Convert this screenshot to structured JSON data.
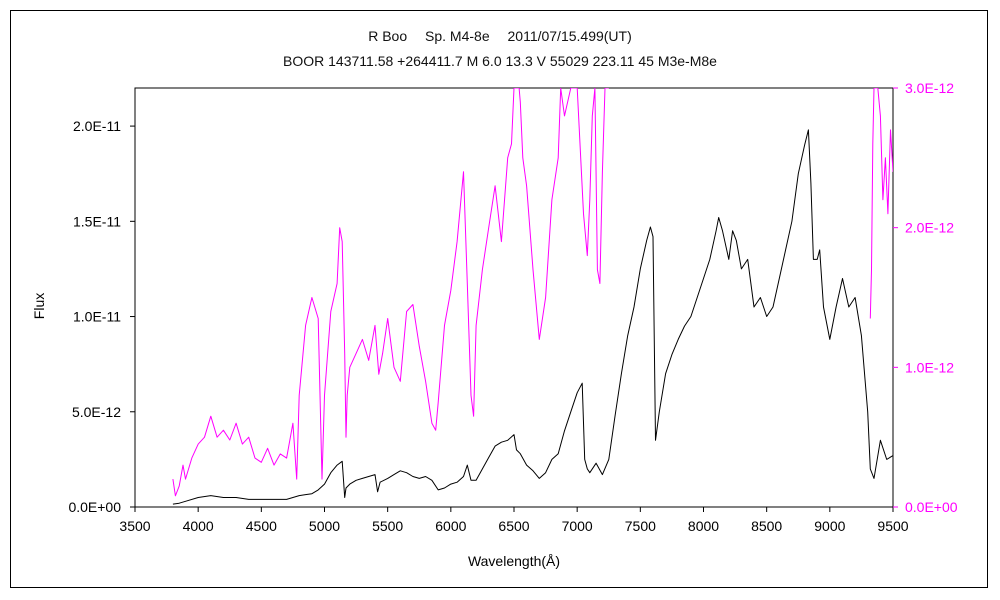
{
  "chart_data": {
    "type": "line",
    "title": "R Boo　 Sp. M4-8e　 2011/07/15.499(UT)",
    "subtitle": "BOOR 143711.58 +264411.7 M 6.0 13.3 V 55029 223.11 45 M3e-M8e",
    "xlabel": "Wavelength(Å)",
    "ylabel": "Flux",
    "xlim": [
      3500,
      9500
    ],
    "ylim": [
      0,
      2.2e-11
    ],
    "y2lim": [
      0,
      3e-12
    ],
    "x_ticks": [
      "3500",
      "4000",
      "4500",
      "5000",
      "5500",
      "6000",
      "6500",
      "7000",
      "7500",
      "8000",
      "8500",
      "9000",
      "9500"
    ],
    "y_ticks": [
      "0.0E+00",
      "5.0E-12",
      "1.0E-11",
      "1.5E-11",
      "2.0E-11"
    ],
    "y2_ticks": [
      "0.0E+00",
      "1.0E-12",
      "2.0E-12",
      "3.0E-12"
    ],
    "colors": {
      "primary": "#000000",
      "secondary": "#ff00ff"
    },
    "series": [
      {
        "axis": "left",
        "color": "#000000",
        "x": [
          3800,
          3850,
          3900,
          4000,
          4100,
          4200,
          4300,
          4400,
          4500,
          4600,
          4700,
          4750,
          4800,
          4850,
          4900,
          4950,
          5000,
          5050,
          5100,
          5140,
          5160,
          5170,
          5200,
          5250,
          5300,
          5350,
          5400,
          5420,
          5440,
          5500,
          5550,
          5600,
          5650,
          5700,
          5750,
          5800,
          5850,
          5900,
          5950,
          6000,
          6050,
          6100,
          6130,
          6160,
          6200,
          6250,
          6300,
          6350,
          6400,
          6450,
          6500,
          6520,
          6550,
          6600,
          6650,
          6700,
          6750,
          6800,
          6850,
          6900,
          6950,
          7000,
          7040,
          7060,
          7080,
          7100,
          7150,
          7200,
          7250,
          7300,
          7350,
          7400,
          7450,
          7500,
          7550,
          7580,
          7600,
          7620,
          7650,
          7700,
          7750,
          7800,
          7850,
          7900,
          7950,
          8000,
          8050,
          8100,
          8120,
          8150,
          8200,
          8230,
          8260,
          8300,
          8350,
          8400,
          8450,
          8500,
          8550,
          8600,
          8650,
          8700,
          8750,
          8800,
          8830,
          8850,
          8870,
          8900,
          8920,
          8950,
          9000,
          9050,
          9100,
          9150,
          9200,
          9250,
          9300,
          9320,
          9350,
          9400,
          9450,
          9500
        ],
        "y": [
          1.5e-13,
          2e-13,
          3e-13,
          5e-13,
          6e-13,
          5e-13,
          5e-13,
          4e-13,
          4e-13,
          4e-13,
          4e-13,
          5e-13,
          6e-13,
          6.5e-13,
          7e-13,
          9e-13,
          1.2e-12,
          1.8e-12,
          2.2e-12,
          2.4e-12,
          5e-13,
          1e-12,
          1.2e-12,
          1.4e-12,
          1.5e-12,
          1.6e-12,
          1.7e-12,
          8e-13,
          1.3e-12,
          1.5e-12,
          1.7e-12,
          1.9e-12,
          1.8e-12,
          1.6e-12,
          1.5e-12,
          1.6e-12,
          1.4e-12,
          9e-13,
          1e-12,
          1.2e-12,
          1.3e-12,
          1.6e-12,
          2.2e-12,
          1.4e-12,
          1.4e-12,
          2e-12,
          2.6e-12,
          3.2e-12,
          3.4e-12,
          3.5e-12,
          3.8e-12,
          3e-12,
          2.8e-12,
          2.2e-12,
          1.9e-12,
          1.5e-12,
          1.8e-12,
          2.5e-12,
          2.8e-12,
          4e-12,
          5e-12,
          6e-12,
          6.5e-12,
          2.5e-12,
          2e-12,
          1.8e-12,
          2.3e-12,
          1.7e-12,
          2.5e-12,
          4.8e-12,
          7e-12,
          9e-12,
          1.05e-11,
          1.25e-11,
          1.4e-11,
          1.47e-11,
          1.42e-11,
          3.5e-12,
          5e-12,
          7e-12,
          8e-12,
          8.8e-12,
          9.5e-12,
          1e-11,
          1.1e-11,
          1.2e-11,
          1.3e-11,
          1.45e-11,
          1.52e-11,
          1.45e-11,
          1.3e-11,
          1.45e-11,
          1.4e-11,
          1.25e-11,
          1.3e-11,
          1.05e-11,
          1.1e-11,
          1e-11,
          1.05e-11,
          1.2e-11,
          1.35e-11,
          1.5e-11,
          1.75e-11,
          1.9e-11,
          1.98e-11,
          1.7e-11,
          1.3e-11,
          1.3e-11,
          1.35e-11,
          1.05e-11,
          8.8e-12,
          1.05e-11,
          1.2e-11,
          1.05e-11,
          1.1e-11,
          9e-12,
          5e-12,
          2e-12,
          1.5e-12,
          3.5e-12,
          2.5e-12,
          2.7e-12
        ]
      },
      {
        "axis": "right",
        "color": "#ff00ff",
        "x": [
          3800,
          3820,
          3850,
          3880,
          3900,
          3950,
          4000,
          4050,
          4100,
          4150,
          4200,
          4250,
          4300,
          4350,
          4400,
          4450,
          4500,
          4550,
          4600,
          4650,
          4700,
          4750,
          4780,
          4800,
          4850,
          4900,
          4950,
          4980,
          5000,
          5050,
          5100,
          5120,
          5140,
          5160,
          5170,
          5180,
          5200,
          5250,
          5300,
          5350,
          5400,
          5430,
          5460,
          5500,
          5550,
          5600,
          5650,
          5700,
          5750,
          5800,
          5850,
          5880,
          5900,
          5950,
          6000,
          6050,
          6100,
          6130,
          6160,
          6180,
          6200,
          6250,
          6300,
          6350,
          6400,
          6450,
          6480,
          6500,
          6520,
          6540,
          6550,
          6570,
          6600,
          6650,
          6700,
          6750,
          6800,
          6850,
          6870,
          6900,
          6950,
          7000,
          7050,
          7080,
          7100,
          7120,
          7140,
          7160,
          7180,
          7200,
          7220,
          7250,
          9320,
          9330,
          9340,
          9350,
          9360,
          9380,
          9400,
          9420,
          9440,
          9460,
          9480,
          9500
        ],
        "y": [
          2e-13,
          8e-14,
          1.5e-13,
          3e-13,
          2e-13,
          3.5e-13,
          4.5e-13,
          5e-13,
          6.5e-13,
          5e-13,
          5.5e-13,
          4.8e-13,
          6e-13,
          4.5e-13,
          5e-13,
          3.5e-13,
          3.2e-13,
          4.2e-13,
          3e-13,
          3.8e-13,
          3.5e-13,
          6e-13,
          2e-13,
          8e-13,
          1.3e-12,
          1.5e-12,
          1.35e-12,
          2e-13,
          8e-13,
          1.4e-12,
          1.6e-12,
          2e-12,
          1.9e-12,
          1.1e-12,
          5e-13,
          8e-13,
          1e-12,
          1.1e-12,
          1.2e-12,
          1.05e-12,
          1.3e-12,
          9.5e-13,
          1.1e-12,
          1.35e-12,
          1e-12,
          9e-13,
          1.4e-12,
          1.45e-12,
          1.15e-12,
          9e-13,
          6e-13,
          5.5e-13,
          7.5e-13,
          1.3e-12,
          1.55e-12,
          1.9e-12,
          2.4e-12,
          1.6e-12,
          8e-13,
          6.5e-13,
          1.3e-12,
          1.7e-12,
          2e-12,
          2.3e-12,
          1.9e-12,
          2.5e-12,
          2.6e-12,
          3e-12,
          3e-12,
          3e-12,
          2.9e-12,
          2.5e-12,
          2.3e-12,
          1.7e-12,
          1.2e-12,
          1.5e-12,
          2.2e-12,
          2.5e-12,
          3e-12,
          2.8e-12,
          3e-12,
          3e-12,
          2.1e-12,
          1.8e-12,
          2.2e-12,
          2.8e-12,
          3e-12,
          1.7e-12,
          1.6e-12,
          2.4e-12,
          3e-12,
          3e-12,
          1.35e-12,
          1.7e-12,
          2.6e-12,
          3e-12,
          3e-12,
          3e-12,
          2.8e-12,
          2.2e-12,
          2.5e-12,
          2.1e-12,
          2.7e-12,
          2.4e-12
        ]
      }
    ]
  }
}
